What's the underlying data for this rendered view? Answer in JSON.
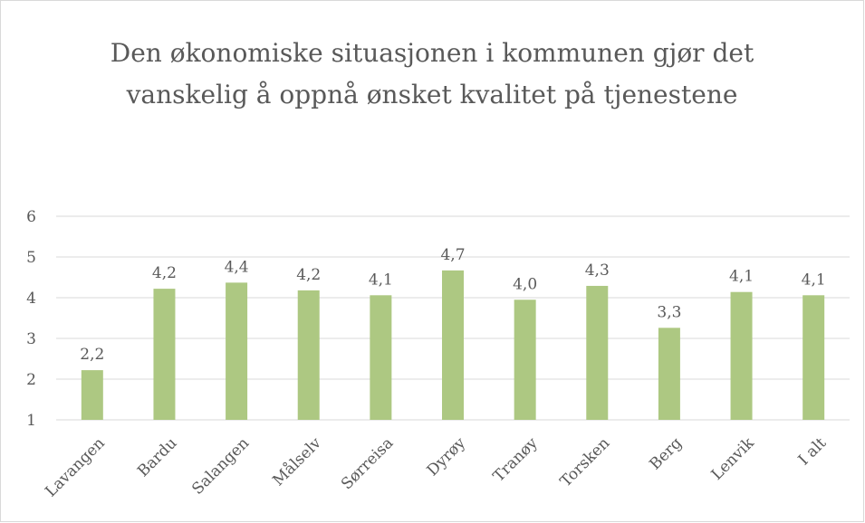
{
  "chart_data": {
    "type": "bar",
    "title": "Den økonomiske situasjonen i kommunen gjør det vanskelig å oppnå ønsket kvalitet på tjenestene",
    "categories": [
      "Lavangen",
      "Bardu",
      "Salangen",
      "Målselv",
      "Sørreisa",
      "Dyrøy",
      "Tranøy",
      "Torsken",
      "Berg",
      "Lenvik",
      "I alt"
    ],
    "values": [
      2.22,
      4.22,
      4.37,
      4.18,
      4.06,
      4.67,
      3.95,
      4.29,
      3.26,
      4.14,
      4.06
    ],
    "value_labels": [
      "2,2",
      "4,2",
      "4,4",
      "4,2",
      "4,1",
      "4,7",
      "4,0",
      "4,3",
      "3,3",
      "4,1",
      "4,1"
    ],
    "color": "#adc882",
    "ylim": [
      1,
      6
    ],
    "yticks": [
      1,
      2,
      3,
      4,
      5,
      6
    ],
    "grid": true
  }
}
